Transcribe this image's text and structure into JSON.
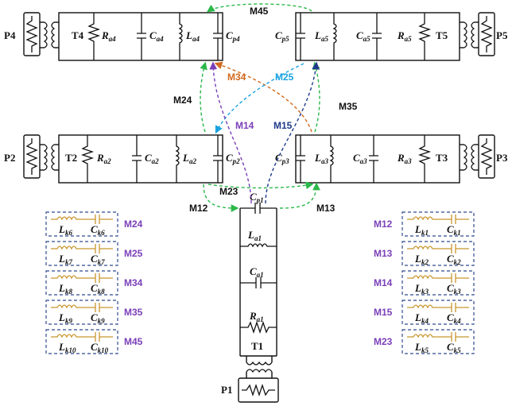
{
  "ports": {
    "p1": "P1",
    "p2": "P2",
    "p3": "P3",
    "p4": "P4",
    "p5": "P5"
  },
  "transformers": {
    "t1": "T1",
    "t2": "T2",
    "t3": "T3",
    "t4": "T4",
    "t5": "T5"
  },
  "res1": {
    "ra": {
      "m": "R",
      "s": "a1"
    },
    "ca": {
      "m": "C",
      "s": "a1"
    },
    "la": {
      "m": "L",
      "s": "a1"
    },
    "cp": {
      "m": "C",
      "s": "p1"
    }
  },
  "res2": {
    "ra": {
      "m": "R",
      "s": "a2"
    },
    "ca": {
      "m": "C",
      "s": "a2"
    },
    "la": {
      "m": "L",
      "s": "a2"
    },
    "cp": {
      "m": "C",
      "s": "p2"
    }
  },
  "res3": {
    "ra": {
      "m": "R",
      "s": "a3"
    },
    "ca": {
      "m": "C",
      "s": "a3"
    },
    "la": {
      "m": "L",
      "s": "a3"
    },
    "cp": {
      "m": "C",
      "s": "p3"
    }
  },
  "res4": {
    "ra": {
      "m": "R",
      "s": "a4"
    },
    "ca": {
      "m": "C",
      "s": "a4"
    },
    "la": {
      "m": "L",
      "s": "a4"
    },
    "cp": {
      "m": "C",
      "s": "p4"
    }
  },
  "res5": {
    "ra": {
      "m": "R",
      "s": "a5"
    },
    "ca": {
      "m": "C",
      "s": "a5"
    },
    "la": {
      "m": "L",
      "s": "a5"
    },
    "cp": {
      "m": "C",
      "s": "p5"
    }
  },
  "couplings": {
    "m12": "M12",
    "m13": "M13",
    "m14": "M14",
    "m15": "M15",
    "m23": "M23",
    "m24": "M24",
    "m25": "M25",
    "m34": "M34",
    "m35": "M35",
    "m45": "M45"
  },
  "legend_left": [
    {
      "mlabel": "M24",
      "l": {
        "m": "L",
        "s": "k6"
      },
      "c": {
        "m": "C",
        "s": "k6"
      }
    },
    {
      "mlabel": "M25",
      "l": {
        "m": "L",
        "s": "k7"
      },
      "c": {
        "m": "C",
        "s": "k7"
      }
    },
    {
      "mlabel": "M34",
      "l": {
        "m": "L",
        "s": "k8"
      },
      "c": {
        "m": "C",
        "s": "k8"
      }
    },
    {
      "mlabel": "M35",
      "l": {
        "m": "L",
        "s": "k9"
      },
      "c": {
        "m": "C",
        "s": "k9"
      }
    },
    {
      "mlabel": "M45",
      "l": {
        "m": "L",
        "s": "k10"
      },
      "c": {
        "m": "C",
        "s": "k10"
      }
    }
  ],
  "legend_right": [
    {
      "mlabel": "M12",
      "l": {
        "m": "L",
        "s": "k1"
      },
      "c": {
        "m": "C",
        "s": "k1"
      }
    },
    {
      "mlabel": "M13",
      "l": {
        "m": "L",
        "s": "k2"
      },
      "c": {
        "m": "C",
        "s": "k2"
      }
    },
    {
      "mlabel": "M14",
      "l": {
        "m": "L",
        "s": "k3"
      },
      "c": {
        "m": "C",
        "s": "k3"
      }
    },
    {
      "mlabel": "M15",
      "l": {
        "m": "L",
        "s": "k4"
      },
      "c": {
        "m": "C",
        "s": "k4"
      }
    },
    {
      "mlabel": "M23",
      "l": {
        "m": "L",
        "s": "k5"
      },
      "c": {
        "m": "C",
        "s": "k5"
      }
    }
  ],
  "colors": {
    "green": "#2bb84a",
    "orange": "#d2691e",
    "cyan": "#1aa3e0",
    "purple": "#7a3fb8",
    "navy": "#1f3a8a",
    "legend_label": "#7a3fb8",
    "gold": "#c8962e",
    "legend_border": "#2e4a8c"
  }
}
